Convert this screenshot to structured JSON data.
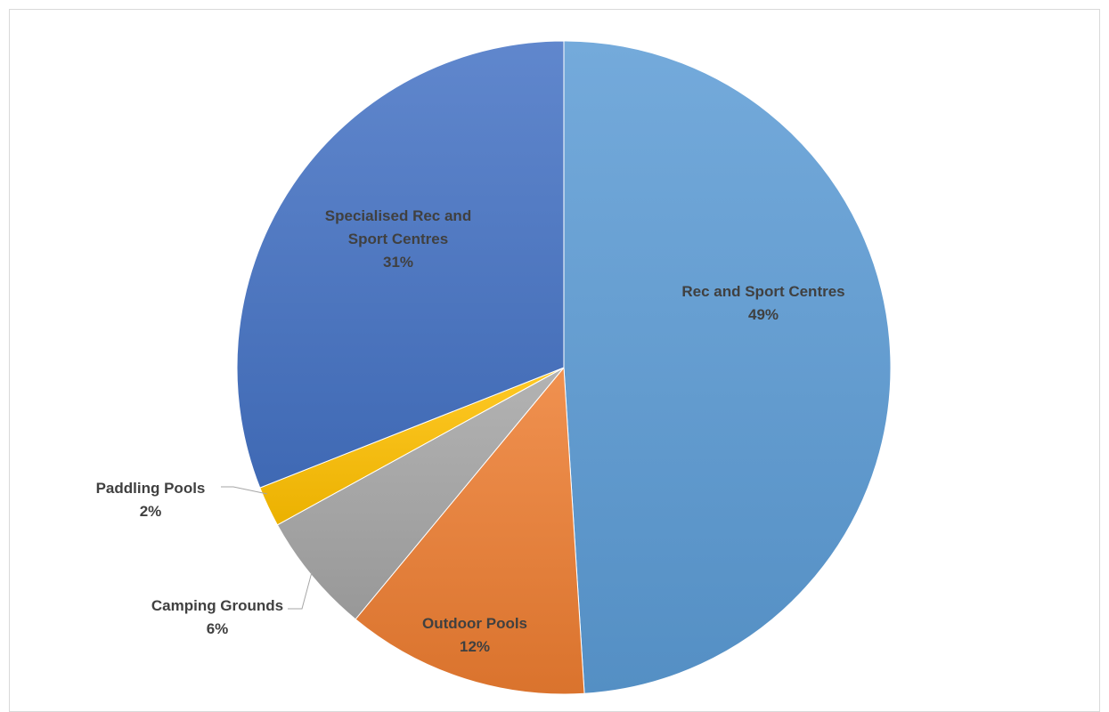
{
  "chart_data": {
    "type": "pie",
    "title": "",
    "start_angle_deg": 0,
    "direction": "clockwise",
    "slices": [
      {
        "name": "Rec and Sport Centres",
        "percent_label": "49%",
        "value": 49,
        "color": "#5b9bd5"
      },
      {
        "name": "Outdoor Pools",
        "percent_label": "12%",
        "value": 12,
        "color": "#ed7d31"
      },
      {
        "name": "Camping Grounds",
        "percent_label": "6%",
        "value": 6,
        "color": "#a5a5a5"
      },
      {
        "name": "Paddling Pools",
        "percent_label": "2%",
        "value": 2,
        "color": "#ffc000"
      },
      {
        "name": "Specialised Rec and Sport Centres",
        "percent_label": "31%",
        "value": 31,
        "color": "#4472c4"
      }
    ],
    "labels": [
      {
        "lines": [
          "Rec and Sport Centres",
          "49%"
        ]
      },
      {
        "lines": [
          "Outdoor Pools",
          "12%"
        ]
      },
      {
        "lines": [
          "Camping Grounds",
          "6%"
        ]
      },
      {
        "lines": [
          "Paddling Pools",
          "2%"
        ]
      },
      {
        "lines": [
          "Specialised Rec and",
          "Sport Centres",
          "31%"
        ]
      }
    ],
    "legend": "none"
  }
}
